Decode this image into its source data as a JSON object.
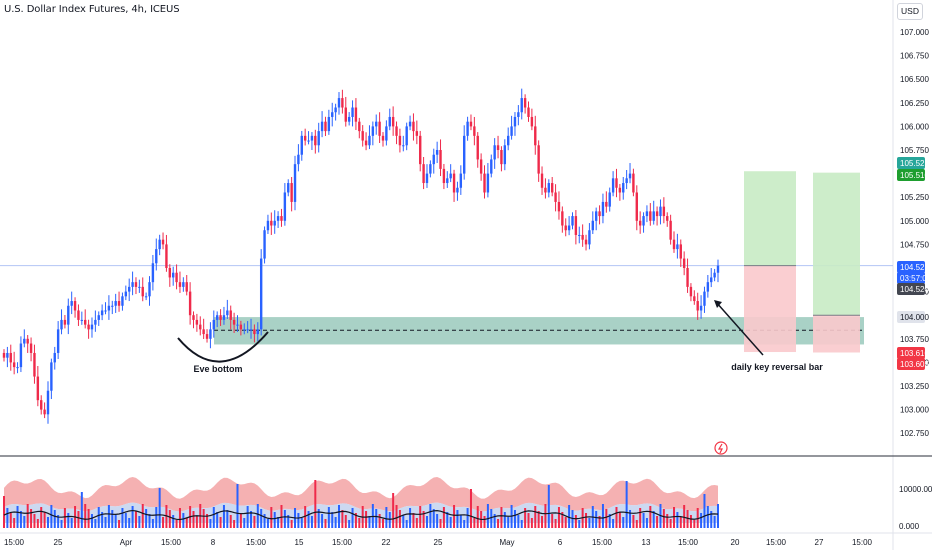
{
  "header": {
    "title": "U.S. Dollar Index Futures, 4h, ICEUS",
    "currency_button": "USD"
  },
  "colors": {
    "up": "#2962ff",
    "down": "#ef2a4a",
    "zone": "#8cc1b3",
    "target": "#c8ebc4",
    "stop": "#f9c9cc",
    "hline": "#b2c4f5",
    "vol_band_red": "#f3a3a4",
    "vol_band_blue": "#c7d5ef"
  },
  "chart_data": {
    "type": "candlestick",
    "symbol": "U.S. Dollar Index Futures",
    "interval": "4h",
    "exchange": "ICEUS",
    "ylim": [
      102.6,
      107.35
    ],
    "y_ticks": [
      "107.000",
      "106.750",
      "106.500",
      "106.250",
      "106.000",
      "105.750",
      "105.250",
      "105.000",
      "104.750",
      "104.250",
      "103.750",
      "103.500",
      "103.250",
      "103.000",
      "102.750"
    ],
    "x_ticks": [
      "15:00",
      "25",
      "Apr",
      "15:00",
      "8",
      "15:00",
      "15",
      "15:00",
      "22",
      "25",
      "May",
      "6",
      "15:00",
      "13",
      "15:00",
      "20",
      "15:00",
      "27",
      "15:00"
    ],
    "price_labels": [
      {
        "text": "105.525",
        "kind": "green"
      },
      {
        "text": "105.510",
        "kind": "green"
      },
      {
        "text": "104.525",
        "kind": "blue"
      },
      {
        "text": "03:57:02",
        "kind": "blue"
      },
      {
        "text": "104.520",
        "kind": "dark"
      },
      {
        "text": "104.000",
        "kind": "gray"
      },
      {
        "text": "103.610",
        "kind": "red"
      },
      {
        "text": "103.605",
        "kind": "red"
      }
    ],
    "last_price": 104.525,
    "countdown": "03:57:02",
    "demand_zone": [
      103.69,
      103.98
    ],
    "dashed_level": 103.84,
    "positions": [
      {
        "entry": 104.525,
        "target": 105.525,
        "stop": 103.61
      },
      {
        "entry": 104.0,
        "target": 105.51,
        "stop": 103.605
      }
    ],
    "annotations": [
      "Eve bottom",
      "daily key reversal bar"
    ],
    "volume_axis": [
      "10000.000",
      "0.000"
    ],
    "closes": [
      103.55,
      103.6,
      103.5,
      103.45,
      103.45,
      103.7,
      103.75,
      103.7,
      103.6,
      103.35,
      103.1,
      103.0,
      102.95,
      103.2,
      103.5,
      103.6,
      103.85,
      103.95,
      103.9,
      104.1,
      104.15,
      104.05,
      103.95,
      103.95,
      103.9,
      103.85,
      103.9,
      103.95,
      104.0,
      104.05,
      104.05,
      104.1,
      104.1,
      104.15,
      104.1,
      104.2,
      104.25,
      104.3,
      104.35,
      104.3,
      104.3,
      104.2,
      104.2,
      104.35,
      104.55,
      104.7,
      104.8,
      104.75,
      104.5,
      104.4,
      104.45,
      104.35,
      104.3,
      104.35,
      104.25,
      104.0,
      103.95,
      103.9,
      103.85,
      103.8,
      103.75,
      103.85,
      103.95,
      104.0,
      103.95,
      104.0,
      104.05,
      103.95,
      103.9,
      103.9,
      103.85,
      103.85,
      103.85,
      103.85,
      103.8,
      103.85,
      104.6,
      104.9,
      105.0,
      104.95,
      105.0,
      105.05,
      105.0,
      105.3,
      105.4,
      105.2,
      105.6,
      105.7,
      105.9,
      105.85,
      105.85,
      105.9,
      105.8,
      105.95,
      106.05,
      105.95,
      106.1,
      106.15,
      106.2,
      106.3,
      106.2,
      106.05,
      106.1,
      106.2,
      106.05,
      105.95,
      105.85,
      105.8,
      105.9,
      106.0,
      106.05,
      105.9,
      105.85,
      106.0,
      106.1,
      106.0,
      105.9,
      105.8,
      105.8,
      106.0,
      106.05,
      105.95,
      105.9,
      105.6,
      105.4,
      105.5,
      105.6,
      105.7,
      105.75,
      105.55,
      105.4,
      105.45,
      105.5,
      105.3,
      105.35,
      105.5,
      105.9,
      106.05,
      106.0,
      105.9,
      105.65,
      105.5,
      105.3,
      105.5,
      105.65,
      105.8,
      105.75,
      105.6,
      105.8,
      105.9,
      106.0,
      106.1,
      106.15,
      106.3,
      106.2,
      106.1,
      106.0,
      105.8,
      105.5,
      105.35,
      105.3,
      105.4,
      105.3,
      105.2,
      105.1,
      104.95,
      104.9,
      104.95,
      105.05,
      104.85,
      104.85,
      104.8,
      104.75,
      104.9,
      105.0,
      105.1,
      105.05,
      105.2,
      105.15,
      105.3,
      105.45,
      105.35,
      105.3,
      105.4,
      105.45,
      105.5,
      105.3,
      105.0,
      104.95,
      105.05,
      105.1,
      105.0,
      105.1,
      105.05,
      105.15,
      105.05,
      105.0,
      104.8,
      104.7,
      104.75,
      104.6,
      104.5,
      104.3,
      104.2,
      104.15,
      104.05,
      104.1,
      104.25,
      104.35,
      104.4,
      104.45,
      104.525
    ],
    "volume_max": 13000
  }
}
